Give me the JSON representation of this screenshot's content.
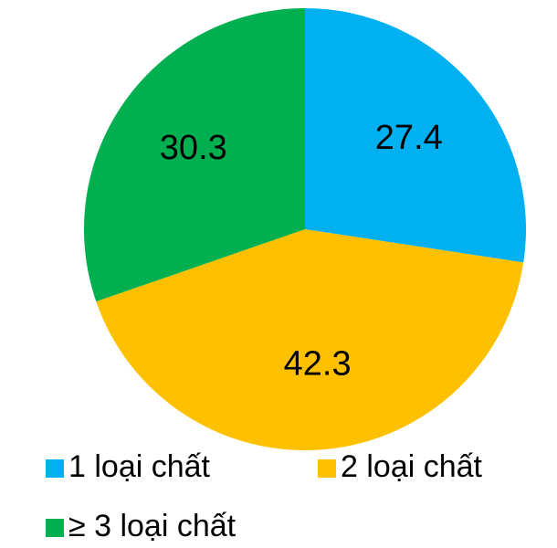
{
  "chart_data": {
    "type": "pie",
    "categories": [
      "1 loại chất",
      "2 loại chất",
      "≥ 3 loại chất"
    ],
    "values": [
      27.4,
      42.3,
      30.3
    ],
    "colors": [
      "#00b0f0",
      "#ffc000",
      "#00b050"
    ],
    "legend": "bottom"
  }
}
